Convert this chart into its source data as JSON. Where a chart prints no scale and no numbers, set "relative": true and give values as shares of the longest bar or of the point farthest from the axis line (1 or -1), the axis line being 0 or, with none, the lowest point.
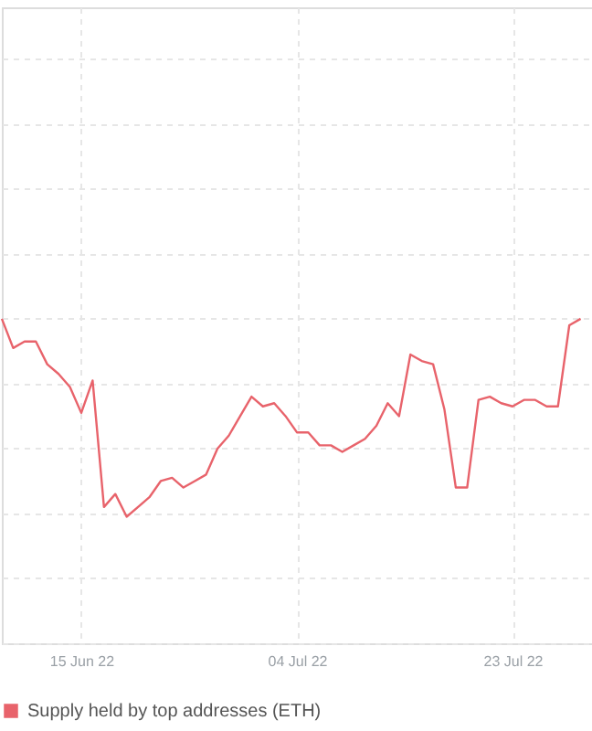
{
  "chart_data": {
    "type": "line",
    "relative": true,
    "x": [
      "2022-06-08",
      "2022-06-09",
      "2022-06-10",
      "2022-06-11",
      "2022-06-12",
      "2022-06-13",
      "2022-06-14",
      "2022-06-15",
      "2022-06-16",
      "2022-06-17",
      "2022-06-18",
      "2022-06-19",
      "2022-06-20",
      "2022-06-21",
      "2022-06-22",
      "2022-06-23",
      "2022-06-24",
      "2022-06-25",
      "2022-06-26",
      "2022-06-27",
      "2022-06-28",
      "2022-06-29",
      "2022-06-30",
      "2022-07-01",
      "2022-07-02",
      "2022-07-03",
      "2022-07-04",
      "2022-07-05",
      "2022-07-06",
      "2022-07-07",
      "2022-07-08",
      "2022-07-09",
      "2022-07-10",
      "2022-07-11",
      "2022-07-12",
      "2022-07-13",
      "2022-07-14",
      "2022-07-15",
      "2022-07-16",
      "2022-07-17",
      "2022-07-18",
      "2022-07-19",
      "2022-07-20",
      "2022-07-21",
      "2022-07-22",
      "2022-07-23",
      "2022-07-24",
      "2022-07-25",
      "2022-07-26",
      "2022-07-27",
      "2022-07-28",
      "2022-07-29"
    ],
    "series": [
      {
        "name": "Supply held by top addresses (ETH)",
        "color": "#e8636b",
        "values": [
          1.0,
          0.91,
          0.93,
          0.93,
          0.86,
          0.83,
          0.79,
          0.71,
          0.81,
          0.42,
          0.46,
          0.39,
          0.42,
          0.45,
          0.5,
          0.51,
          0.48,
          0.5,
          0.52,
          0.6,
          0.64,
          0.7,
          0.76,
          0.73,
          0.74,
          0.7,
          0.65,
          0.65,
          0.61,
          0.61,
          0.59,
          0.61,
          0.63,
          0.67,
          0.74,
          0.7,
          0.89,
          0.87,
          0.86,
          0.72,
          0.48,
          0.48,
          0.75,
          0.76,
          0.74,
          0.73,
          0.75,
          0.75,
          0.73,
          0.73,
          0.98,
          1.0
        ]
      }
    ],
    "xlim": [
      "2022-06-08",
      "2022-07-30"
    ],
    "xticks": [
      {
        "value": "2022-06-15",
        "label": "15 Jun 22"
      },
      {
        "value": "2022-07-04",
        "label": "04 Jul 22"
      },
      {
        "value": "2022-07-23",
        "label": "23 Jul 22"
      }
    ],
    "tick_labels": "x",
    "grid": true,
    "legend": "bottom",
    "marker": "none",
    "line_style": "solid"
  }
}
